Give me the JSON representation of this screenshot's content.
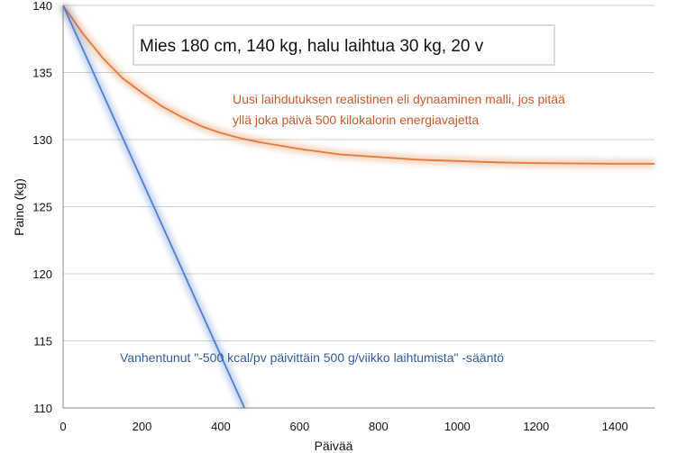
{
  "chart_data": {
    "type": "line",
    "xlabel": "Päivää",
    "ylabel": "Paino  (kg)",
    "xlim": [
      0,
      1500
    ],
    "ylim": [
      110,
      140
    ],
    "xticks": [
      0,
      200,
      400,
      600,
      800,
      1000,
      1200,
      1400
    ],
    "yticks": [
      110,
      115,
      120,
      125,
      130,
      135,
      140
    ],
    "grid": "horizontal",
    "title_box": "Mies 180 cm, 140 kg, halu laihtua 30 kg, 20 v",
    "series": [
      {
        "color": "#e07b39",
        "x": [
          0,
          50,
          100,
          150,
          200,
          250,
          300,
          350,
          400,
          450,
          500,
          600,
          700,
          800,
          900,
          1000,
          1100,
          1200,
          1300,
          1400,
          1500
        ],
        "y": [
          140,
          137.9,
          136.1,
          134.6,
          133.5,
          132.5,
          131.7,
          131.0,
          130.5,
          130.1,
          129.8,
          129.3,
          128.9,
          128.7,
          128.5,
          128.4,
          128.3,
          128.25,
          128.22,
          128.2,
          128.2
        ]
      },
      {
        "color": "#4f7fd0",
        "x": [
          0,
          460
        ],
        "y": [
          140,
          110
        ]
      }
    ],
    "annotations": [
      {
        "lines": [
          "Uusi laihdutuksen realistinen eli dynaaminen malli, jos pitää",
          "yllä joka päivä 500 kilokalorin energiavajetta"
        ],
        "color": "#c8582a"
      },
      {
        "lines": [
          "Vanhentunut \"-500 kcal/pv päivittäin 500 g/viikko laihtumista\" -sääntö"
        ],
        "color": "#2f5b9a"
      }
    ]
  }
}
